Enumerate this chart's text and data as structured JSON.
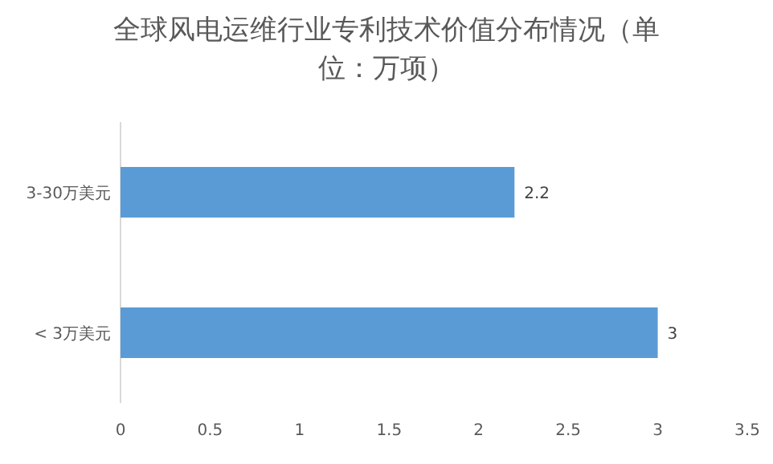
{
  "chart_data": {
    "type": "bar",
    "orientation": "horizontal",
    "title": "全球风电运维行业专利技术价值分布情况（单位：万项）",
    "categories": [
      "3-30万美元",
      "< 3万美元"
    ],
    "values": [
      2.2,
      3
    ],
    "color": "#5b9bd5",
    "xlim": [
      0,
      3.5
    ],
    "xticks": [
      0,
      0.5,
      1,
      1.5,
      2,
      2.5,
      3,
      3.5
    ],
    "data_labels": true,
    "grid": false
  }
}
